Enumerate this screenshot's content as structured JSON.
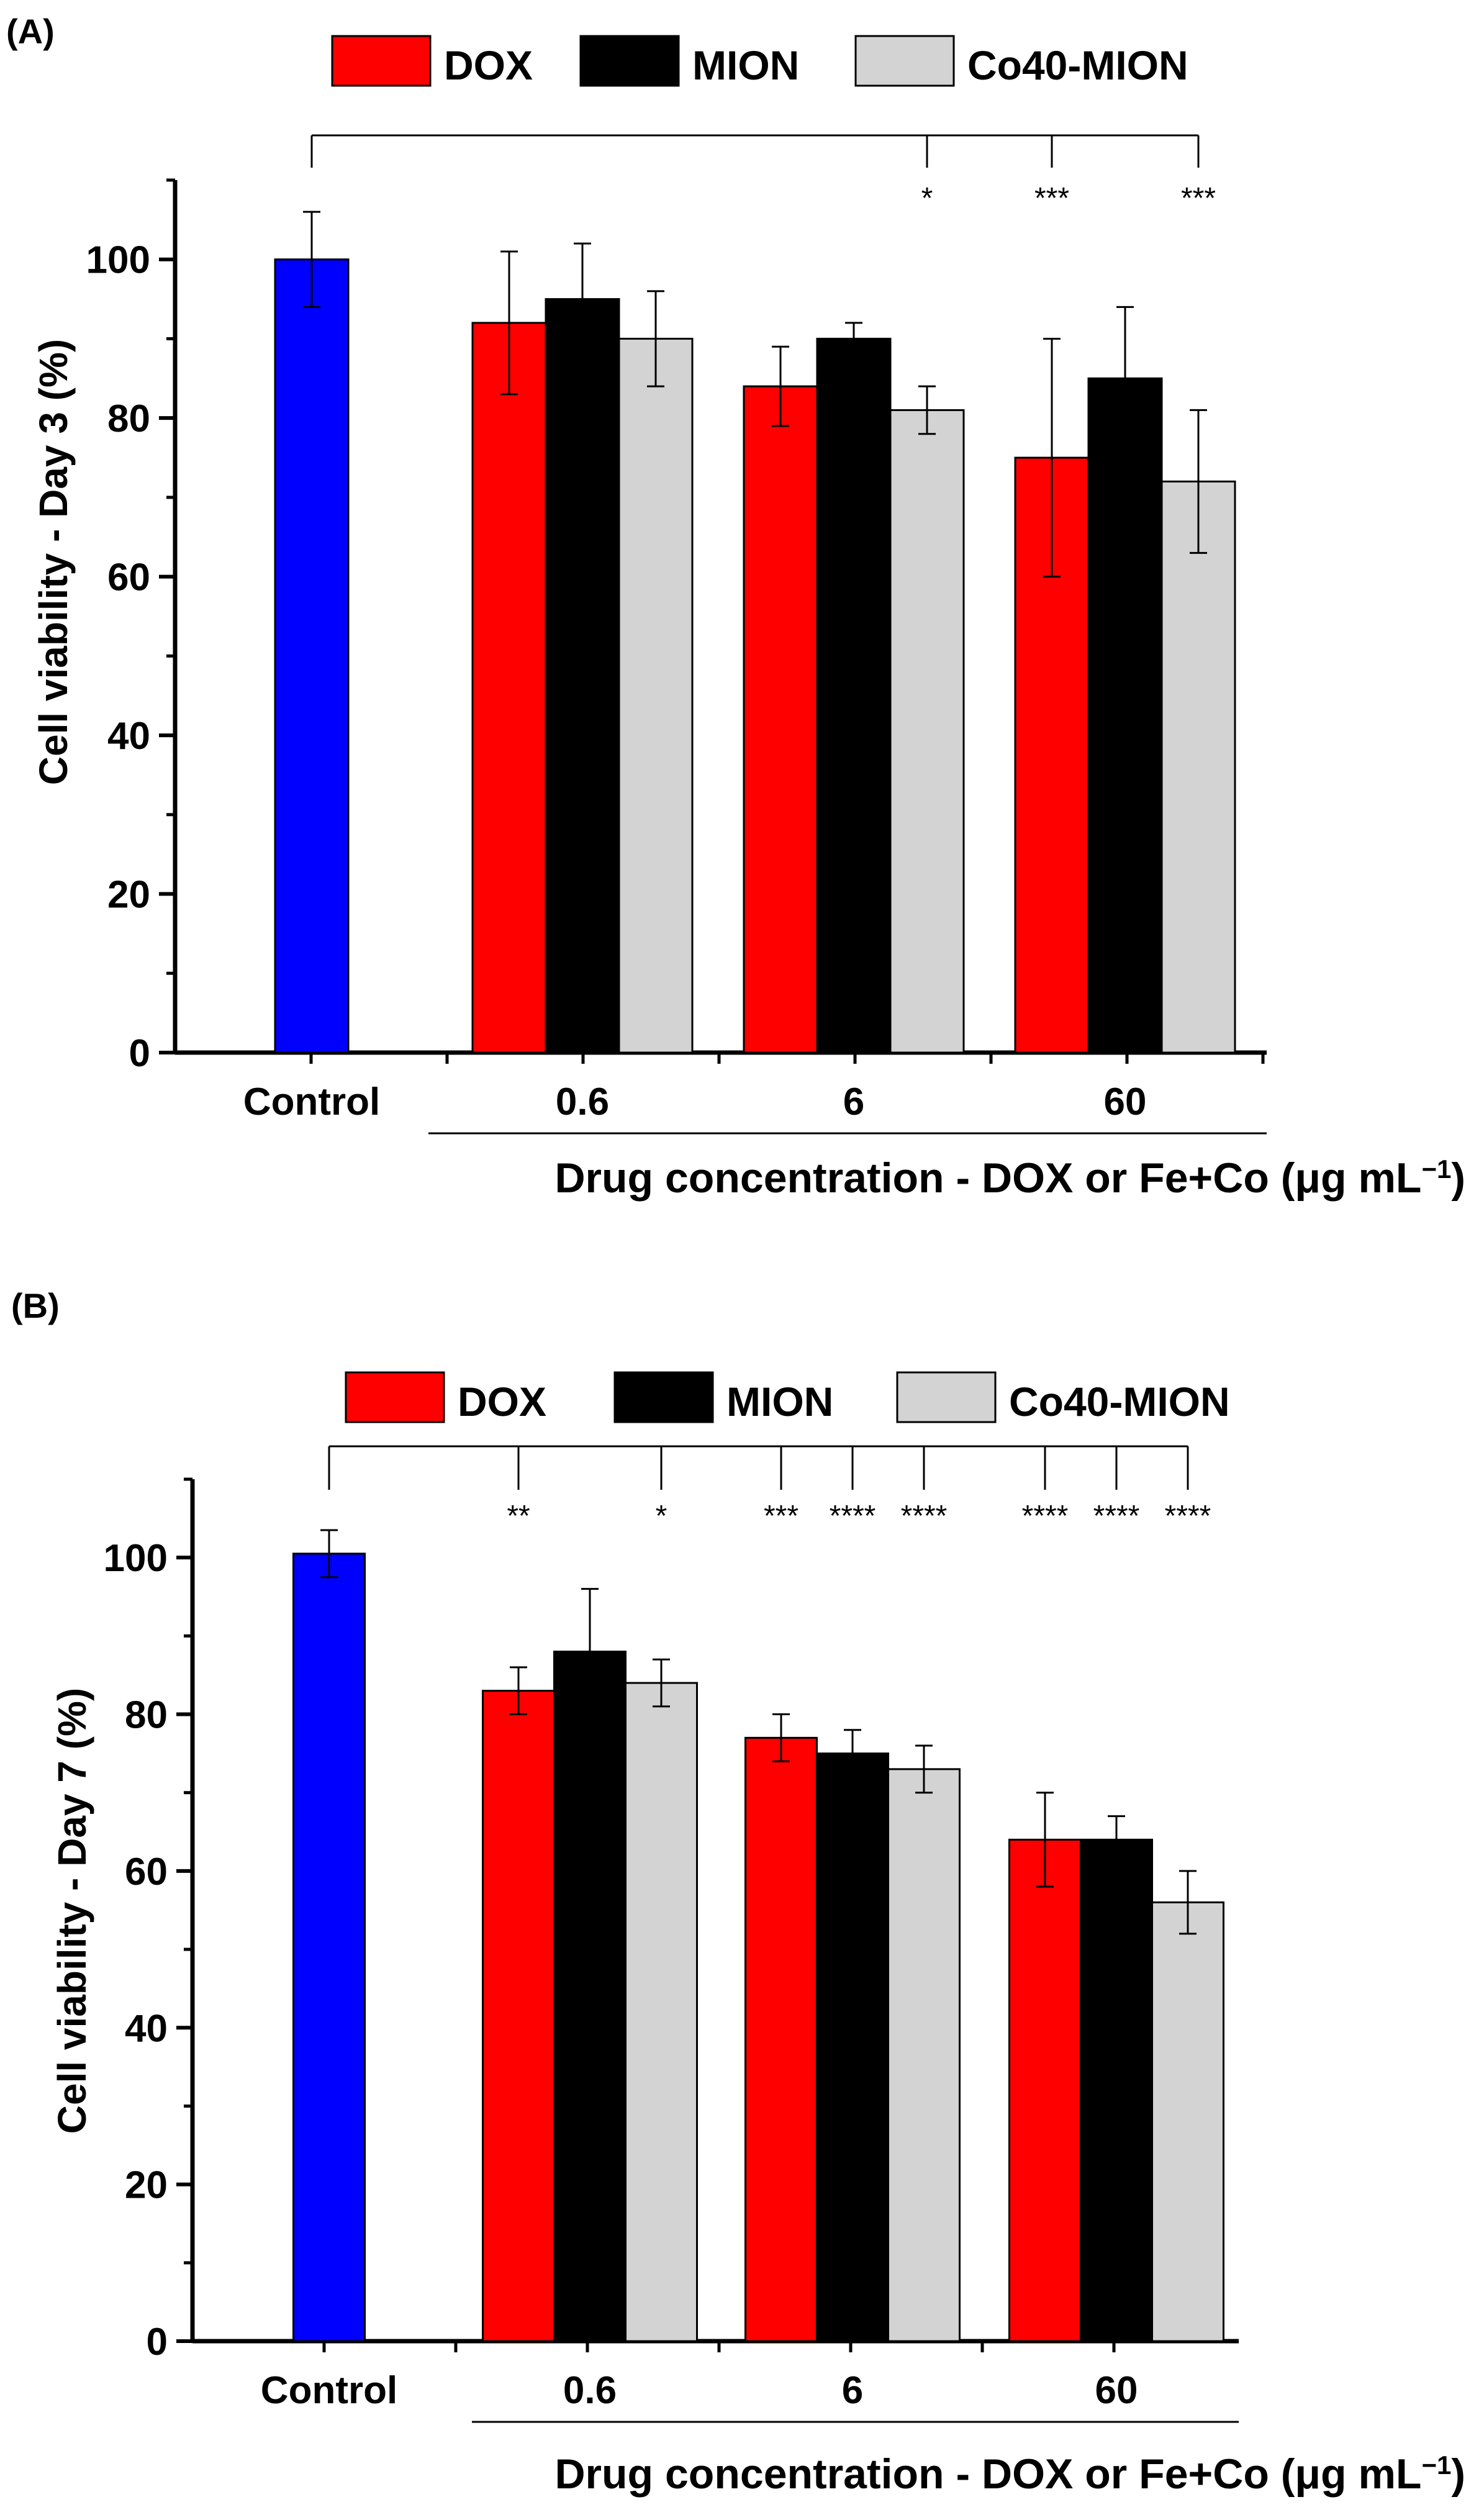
{
  "colors": {
    "DOX": "#ff0000",
    "MION": "#000000",
    "Co40-MION": "#d3d3d3",
    "Control": "#0000ff"
  },
  "chart_data": [
    {
      "panel_label": "(A)",
      "type": "bar",
      "ylabel": "Cell viability - Day 3 (%)",
      "xlabel": "Drug concentration - DOX or Fe+Co (μg mL",
      "xlabel_unit_power": "−1",
      "xlabel_close": ")",
      "ylim": [
        0,
        110
      ],
      "yticks": [
        "0",
        "20",
        "40",
        "60",
        "80",
        "100"
      ],
      "legend": [
        "DOX",
        "MION",
        "Co40-MION"
      ],
      "control": {
        "label": "Control",
        "value": 100,
        "error": 6
      },
      "categories": [
        "0.6",
        "6",
        "60"
      ],
      "series": [
        {
          "name": "DOX",
          "values": [
            92,
            84,
            75
          ],
          "errors": [
            9,
            5,
            15
          ]
        },
        {
          "name": "MION",
          "values": [
            95,
            90,
            85
          ],
          "errors": [
            7,
            2,
            9
          ]
        },
        {
          "name": "Co40-MION",
          "values": [
            90,
            81,
            72
          ],
          "errors": [
            6,
            3,
            9
          ]
        }
      ],
      "significance": [
        {
          "group": 1,
          "series": "Co40-MION",
          "stars": "*"
        },
        {
          "group": 2,
          "series": "DOX",
          "stars": "***"
        },
        {
          "group": 2,
          "series": "Co40-MION",
          "stars": "***"
        }
      ]
    },
    {
      "panel_label": "(B)",
      "type": "bar",
      "ylabel": "Cell viability - Day 7 (%)",
      "xlabel": "Drug concentration - DOX or Fe+Co (μg mL",
      "xlabel_unit_power": "−1",
      "xlabel_close": ")",
      "ylim": [
        0,
        110
      ],
      "yticks": [
        "0",
        "20",
        "40",
        "60",
        "80",
        "100"
      ],
      "legend": [
        "DOX",
        "MION",
        "Co40-MION"
      ],
      "control": {
        "label": "Control",
        "value": 100.5,
        "error": 3
      },
      "categories": [
        "0.6",
        "6",
        "60"
      ],
      "series": [
        {
          "name": "DOX",
          "values": [
            83,
            77,
            64
          ],
          "errors": [
            3,
            3,
            6
          ]
        },
        {
          "name": "MION",
          "values": [
            88,
            75,
            64
          ],
          "errors": [
            8,
            3,
            3
          ]
        },
        {
          "name": "Co40-MION",
          "values": [
            84,
            73,
            56
          ],
          "errors": [
            3,
            3,
            4
          ]
        }
      ],
      "significance": [
        {
          "group": 0,
          "series": "DOX",
          "stars": "**"
        },
        {
          "group": 0,
          "series": "Co40-MION",
          "stars": "*"
        },
        {
          "group": 1,
          "series": "DOX",
          "stars": "***"
        },
        {
          "group": 1,
          "series": "MION",
          "stars": "****"
        },
        {
          "group": 1,
          "series": "Co40-MION",
          "stars": "****"
        },
        {
          "group": 2,
          "series": "DOX",
          "stars": "****"
        },
        {
          "group": 2,
          "series": "MION",
          "stars": "****"
        },
        {
          "group": 2,
          "series": "Co40-MION",
          "stars": "****"
        }
      ]
    }
  ]
}
